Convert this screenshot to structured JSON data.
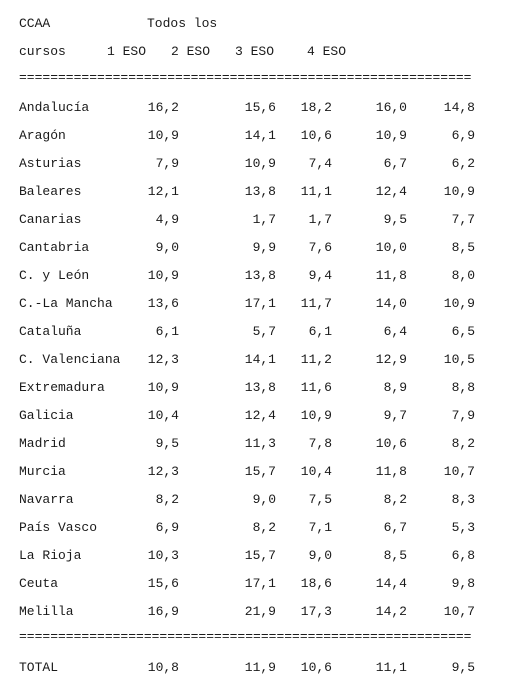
{
  "header": {
    "line1_ccaa": "CCAA",
    "line1_todos": "Todos los",
    "line2_cursos": "cursos",
    "col_eso1": "1 ESO",
    "col_eso2": "2 ESO",
    "col_eso3": "3 ESO",
    "col_eso4": "4 ESO"
  },
  "separator": "==========================================================",
  "rows": [
    {
      "name": "Andalucía",
      "v": [
        "16,2",
        "15,6",
        "18,2",
        "16,0",
        "14,8"
      ]
    },
    {
      "name": "Aragón",
      "v": [
        "10,9",
        "14,1",
        "10,6",
        "10,9",
        "6,9"
      ]
    },
    {
      "name": "Asturias",
      "v": [
        "7,9",
        "10,9",
        "7,4",
        "6,7",
        "6,2"
      ]
    },
    {
      "name": "Baleares",
      "v": [
        "12,1",
        "13,8",
        "11,1",
        "12,4",
        "10,9"
      ]
    },
    {
      "name": "Canarias",
      "v": [
        "4,9",
        "1,7",
        "1,7",
        "9,5",
        "7,7"
      ]
    },
    {
      "name": "Cantabria",
      "v": [
        "9,0",
        "9,9",
        "7,6",
        "10,0",
        "8,5"
      ]
    },
    {
      "name": "C. y León",
      "v": [
        "10,9",
        "13,8",
        "9,4",
        "11,8",
        "8,0"
      ]
    },
    {
      "name": "C.-La Mancha",
      "v": [
        "13,6",
        "17,1",
        "11,7",
        "14,0",
        "10,9"
      ]
    },
    {
      "name": "Cataluña",
      "v": [
        "6,1",
        "5,7",
        "6,1",
        "6,4",
        "6,5"
      ]
    },
    {
      "name": "C. Valenciana",
      "v": [
        "12,3",
        "14,1",
        "11,2",
        "12,9",
        "10,5"
      ]
    },
    {
      "name": "Extremadura",
      "v": [
        "10,9",
        "13,8",
        "11,6",
        "8,9",
        "8,8"
      ]
    },
    {
      "name": "Galicia",
      "v": [
        "10,4",
        "12,4",
        "10,9",
        "9,7",
        "7,9"
      ]
    },
    {
      "name": "Madrid",
      "v": [
        "9,5",
        "11,3",
        "7,8",
        "10,6",
        "8,2"
      ]
    },
    {
      "name": "Murcia",
      "v": [
        "12,3",
        "15,7",
        "10,4",
        "11,8",
        "10,7"
      ]
    },
    {
      "name": "Navarra",
      "v": [
        "8,2",
        "9,0",
        "7,5",
        "8,2",
        "8,3"
      ]
    },
    {
      "name": "País Vasco",
      "v": [
        "6,9",
        "8,2",
        "7,1",
        "6,7",
        "5,3"
      ]
    },
    {
      "name": "La Rioja",
      "v": [
        "10,3",
        "15,7",
        "9,0",
        "8,5",
        "6,8"
      ]
    },
    {
      "name": "Ceuta",
      "v": [
        "15,6",
        "17,1",
        "18,6",
        "14,4",
        "9,8"
      ]
    },
    {
      "name": "Melilla",
      "v": [
        "16,9",
        "21,9",
        "17,3",
        "14,2",
        "10,7"
      ]
    }
  ],
  "total": {
    "name": "TOTAL",
    "v": [
      "10,8",
      "11,9",
      "10,6",
      "11,1",
      "9,5"
    ]
  }
}
